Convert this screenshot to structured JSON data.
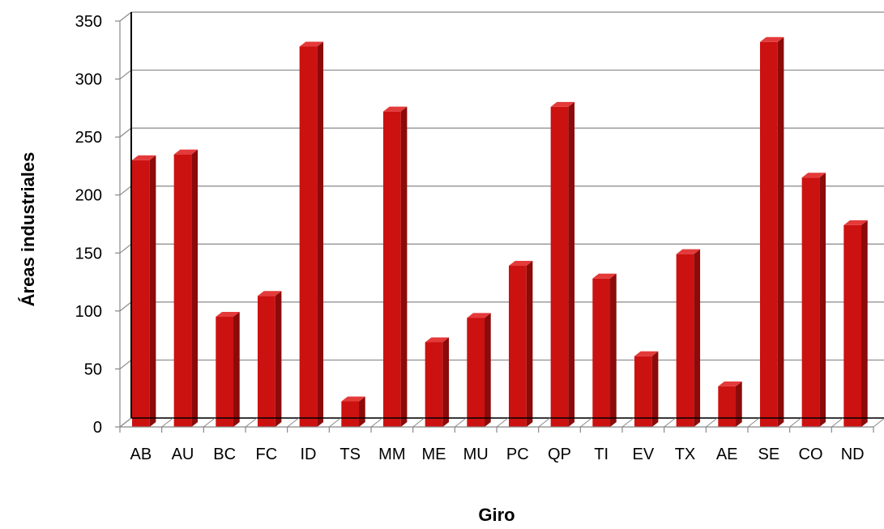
{
  "chart_data": {
    "type": "bar",
    "title": "",
    "xlabel": "Giro",
    "ylabel": "Áreas  industriales",
    "categories": [
      "AB",
      "AU",
      "BC",
      "FC",
      "ID",
      "TS",
      "MM",
      "ME",
      "MU",
      "PC",
      "QP",
      "TI",
      "EV",
      "TX",
      "AE",
      "SE",
      "CO",
      "ND"
    ],
    "values": [
      230,
      235,
      95,
      113,
      328,
      22,
      272,
      73,
      94,
      139,
      276,
      128,
      61,
      149,
      35,
      332,
      215,
      174
    ],
    "ylim": [
      0,
      350
    ],
    "yticks": [
      0,
      50,
      100,
      150,
      200,
      250,
      300,
      350
    ],
    "grid": true,
    "style": "3d-column",
    "colors": {
      "bar_front": "#cc1111",
      "bar_side": "#8c0a0a",
      "bar_top": "#e43a3a",
      "grid": "#888888",
      "axis": "#000000"
    }
  }
}
